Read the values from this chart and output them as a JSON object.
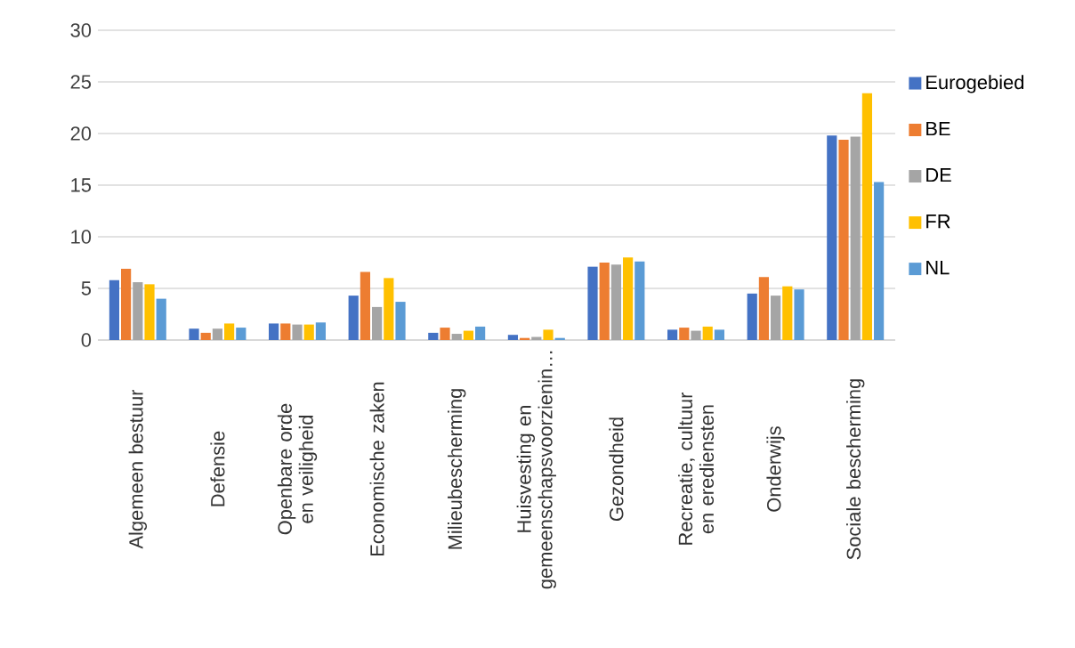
{
  "chart_data": {
    "type": "bar",
    "categories": [
      "Algemeen bestuur",
      "Defensie",
      "Openbare orde en veiligheid",
      "Economische zaken",
      "Milieubescherming",
      "Huisvesting en gemeenschapsvoorzienin…",
      "Gezondheid",
      "Recreatie, cultuur en erediensten",
      "Onderwijs",
      "Sociale bescherming"
    ],
    "series": [
      {
        "name": "Eurogebied",
        "color": "#4472c4",
        "values": [
          5.8,
          1.1,
          1.6,
          4.3,
          0.7,
          0.5,
          7.1,
          1.0,
          4.5,
          19.8
        ]
      },
      {
        "name": "BE",
        "color": "#ed7d31",
        "values": [
          6.9,
          0.7,
          1.6,
          6.6,
          1.2,
          0.2,
          7.5,
          1.2,
          6.1,
          19.4
        ]
      },
      {
        "name": "DE",
        "color": "#a5a5a5",
        "values": [
          5.6,
          1.1,
          1.5,
          3.2,
          0.6,
          0.3,
          7.3,
          0.9,
          4.3,
          19.7
        ]
      },
      {
        "name": "FR",
        "color": "#ffc000",
        "values": [
          5.4,
          1.6,
          1.5,
          6.0,
          0.9,
          1.0,
          8.0,
          1.3,
          5.2,
          23.9
        ]
      },
      {
        "name": "NL",
        "color": "#5b9bd5",
        "values": [
          4.0,
          1.2,
          1.7,
          3.7,
          1.3,
          0.2,
          7.6,
          1.0,
          4.9,
          15.3
        ]
      }
    ],
    "ylim": [
      0,
      30
    ],
    "yticks": [
      0,
      5,
      10,
      15,
      20,
      25,
      30
    ],
    "grid": "y",
    "legend": "right"
  }
}
